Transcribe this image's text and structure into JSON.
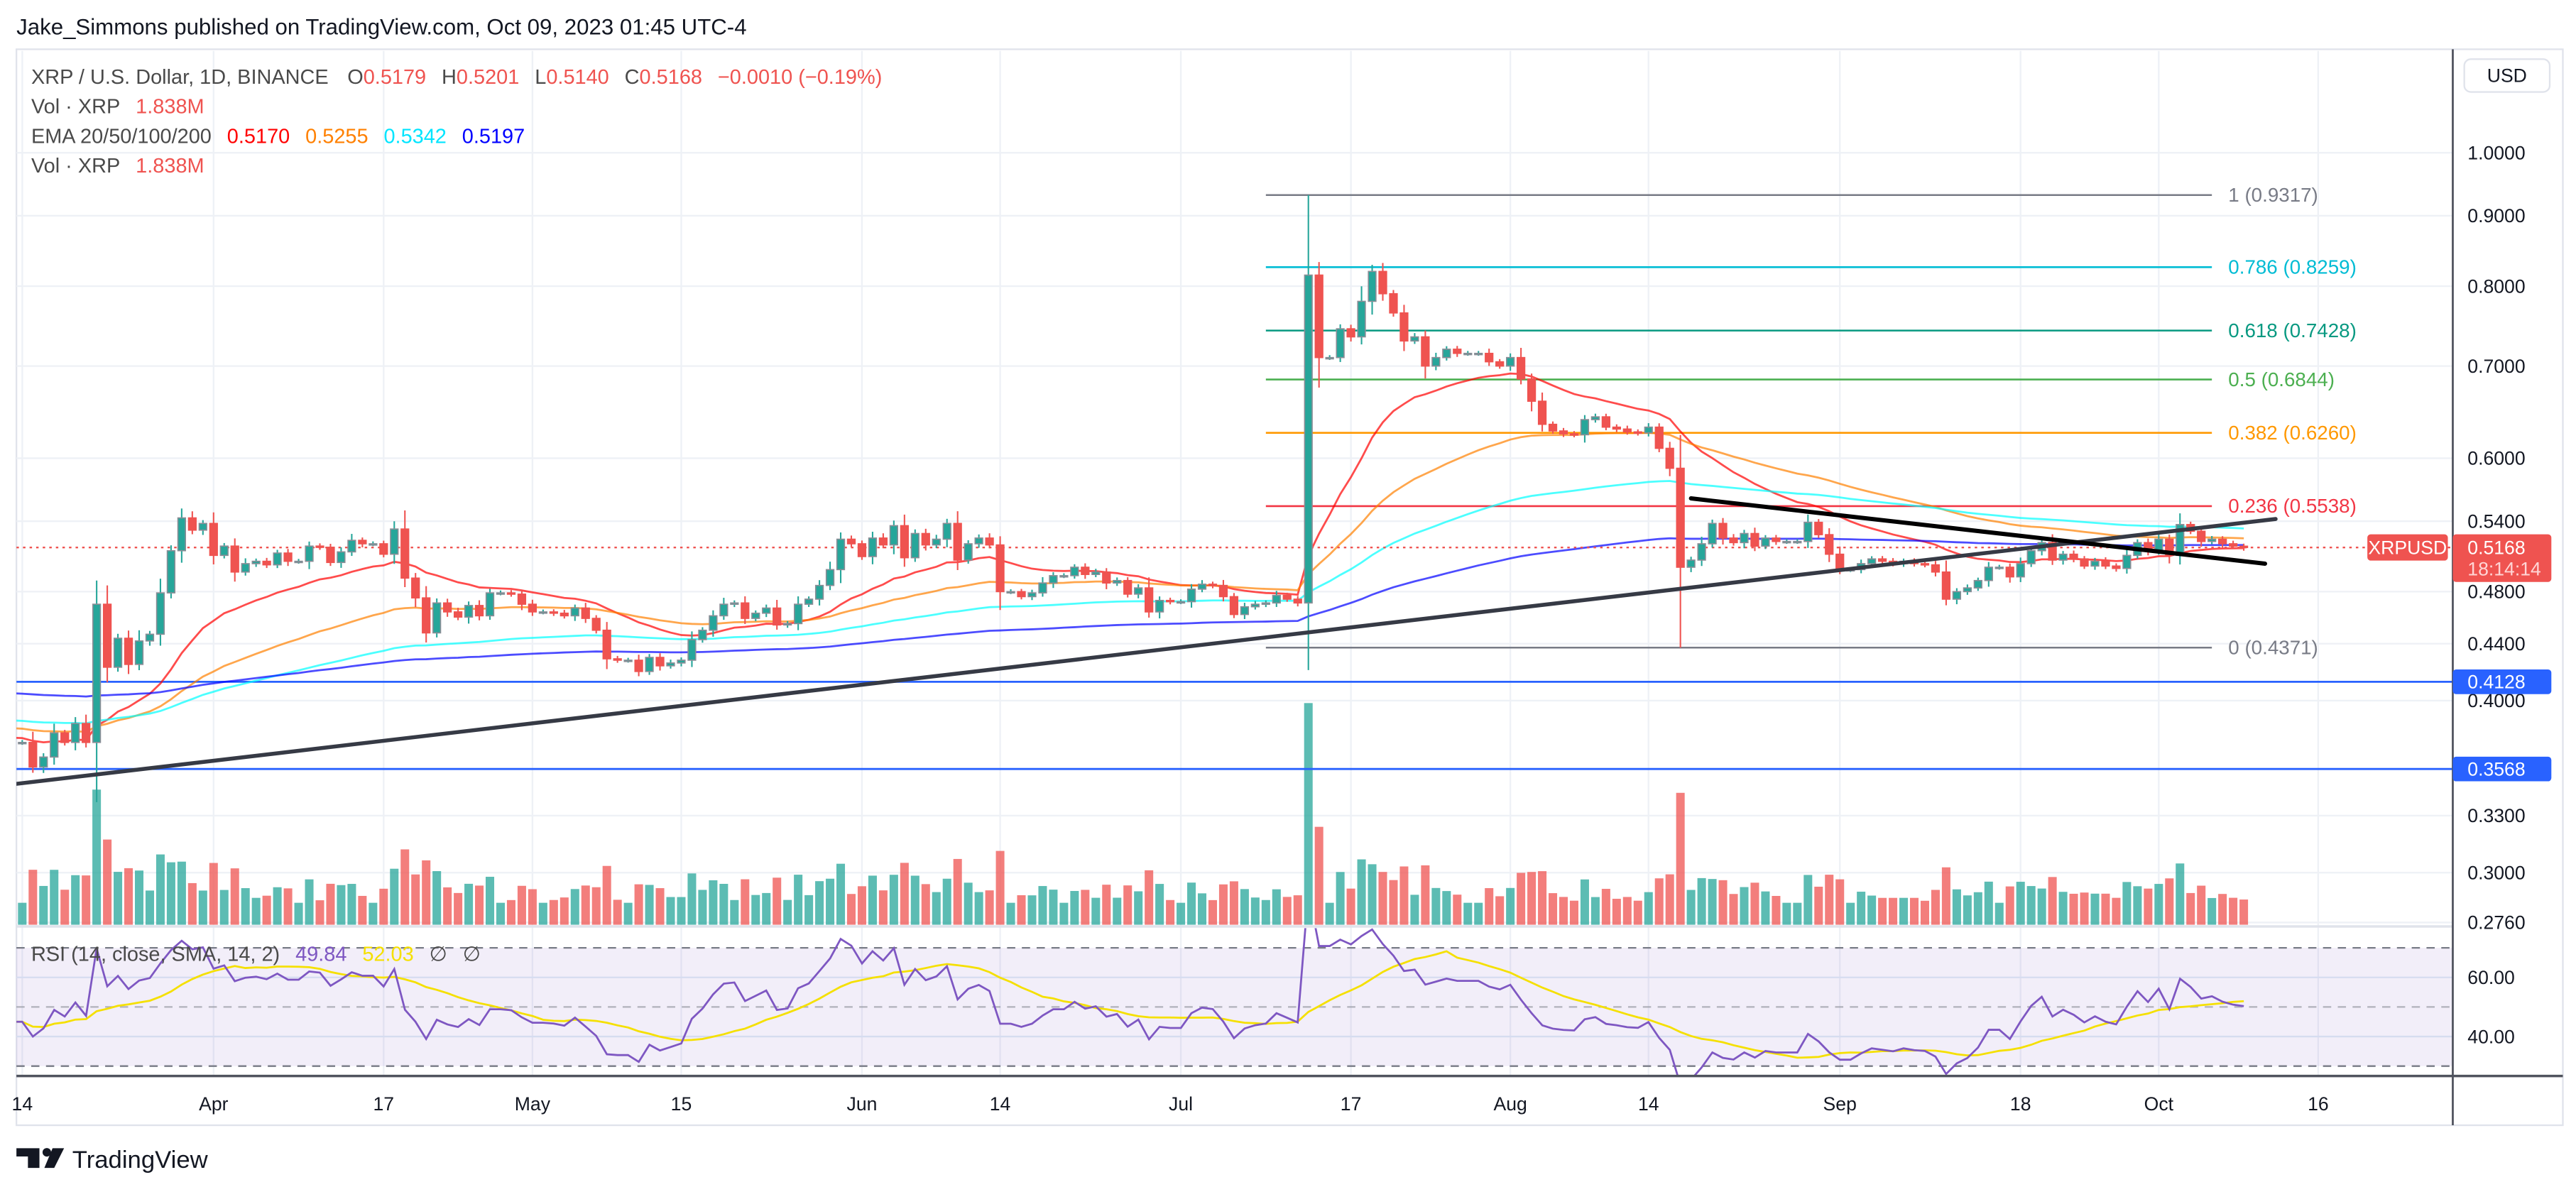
{
  "header": {
    "attribution": "Jake_Simmons published on TradingView.com, Oct 09, 2023 01:45 UTC-4"
  },
  "legend": {
    "symbol": "XRP / U.S. Dollar, 1D, BINANCE",
    "o_label": "O",
    "o": "0.5179",
    "h_label": "H",
    "h": "0.5201",
    "l_label": "L",
    "l": "0.5140",
    "c_label": "C",
    "c": "0.5168",
    "change": "−0.0010 (−0.19%)",
    "vol_label": "Vol · XRP",
    "vol": "1.838M",
    "ema_label": "EMA 20/50/100/200",
    "ema": [
      "0.5170",
      "0.5255",
      "0.5342",
      "0.5197"
    ],
    "vol2_label": "Vol · XRP",
    "vol2": "1.838M"
  },
  "price_axis": {
    "currency": "USD",
    "ticks": [
      "1.0000",
      "0.9000",
      "0.8000",
      "0.7000",
      "0.6000",
      "0.5400",
      "0.4800",
      "0.4400",
      "0.4000",
      "0.3300",
      "0.3000",
      "0.2760"
    ]
  },
  "tags": {
    "symbol": "XRPUSD",
    "price": "0.5168",
    "countdown": "18:14:14",
    "levels": [
      "0.4128",
      "0.3568"
    ]
  },
  "time_axis": [
    {
      "label": "14",
      "date": "2023-03-14"
    },
    {
      "label": "Apr",
      "date": "2023-04-01"
    },
    {
      "label": "17",
      "date": "2023-04-17"
    },
    {
      "label": "May",
      "date": "2023-05-01"
    },
    {
      "label": "15",
      "date": "2023-05-15"
    },
    {
      "label": "Jun",
      "date": "2023-06-01"
    },
    {
      "label": "14",
      "date": "2023-06-14"
    },
    {
      "label": "Jul",
      "date": "2023-07-01"
    },
    {
      "label": "17",
      "date": "2023-07-17"
    },
    {
      "label": "Aug",
      "date": "2023-08-01"
    },
    {
      "label": "14",
      "date": "2023-08-14"
    },
    {
      "label": "Sep",
      "date": "2023-09-01"
    },
    {
      "label": "18",
      "date": "2023-09-18"
    },
    {
      "label": "Oct",
      "date": "2023-10-01"
    },
    {
      "label": "16",
      "date": "2023-10-16"
    }
  ],
  "fib": {
    "start_date": "2023-07-09",
    "end_date": "2023-10-06",
    "levels": [
      {
        "label": "1 (0.9317)",
        "price": 0.9317,
        "color": "#787b86"
      },
      {
        "label": "0.786 (0.8259)",
        "price": 0.8259,
        "color": "#00bcd4"
      },
      {
        "label": "0.618 (0.7428)",
        "price": 0.7428,
        "color": "#089981"
      },
      {
        "label": "0.5 (0.6844)",
        "price": 0.6844,
        "color": "#4caf50"
      },
      {
        "label": "0.382 (0.6260)",
        "price": 0.626,
        "color": "#ff9800"
      },
      {
        "label": "0.236 (0.5538)",
        "price": 0.5538,
        "color": "#f23645"
      },
      {
        "label": "0 (0.4371)",
        "price": 0.4371,
        "color": "#787b86"
      }
    ]
  },
  "rsi": {
    "label": "RSI (14, close, SMA, 14, 2)",
    "value": "49.84",
    "sma": "52.03",
    "na1": "∅",
    "na2": "∅",
    "axis": [
      "60.00",
      "40.00"
    ]
  },
  "logo": {
    "text": "TradingView"
  },
  "colors": {
    "up": "#26a69a",
    "down": "#ef5350",
    "ema20": "#ff0000",
    "ema50": "#ff8000",
    "ema100": "#00ffff",
    "ema200": "#0000ff",
    "rsi": "#7e57c2",
    "rsi_sma": "#f5e000",
    "level": "#2962ff",
    "trendline": "#363a45"
  },
  "chart_data": {
    "type": "candlestick",
    "symbol": "XRPUSD",
    "interval": "1D",
    "y_scale": "log",
    "ylim": [
      0.27,
      1.05
    ],
    "xlim": [
      "2023-03-13",
      "2023-10-22"
    ],
    "grid": true,
    "start_date": "2023-03-13",
    "close": [
      0.373,
      0.373,
      0.358,
      0.364,
      0.379,
      0.373,
      0.385,
      0.373,
      0.47,
      0.423,
      0.444,
      0.425,
      0.442,
      0.447,
      0.479,
      0.514,
      0.543,
      0.532,
      0.538,
      0.51,
      0.518,
      0.496,
      0.503,
      0.505,
      0.502,
      0.512,
      0.505,
      0.505,
      0.518,
      0.517,
      0.504,
      0.513,
      0.523,
      0.52,
      0.52,
      0.511,
      0.533,
      0.491,
      0.475,
      0.448,
      0.471,
      0.464,
      0.46,
      0.469,
      0.461,
      0.479,
      0.479,
      0.478,
      0.47,
      0.464,
      0.464,
      0.463,
      0.461,
      0.467,
      0.459,
      0.45,
      0.429,
      0.428,
      0.428,
      0.42,
      0.43,
      0.424,
      0.426,
      0.428,
      0.443,
      0.45,
      0.461,
      0.47,
      0.471,
      0.459,
      0.463,
      0.467,
      0.454,
      0.455,
      0.47,
      0.474,
      0.485,
      0.498,
      0.524,
      0.52,
      0.509,
      0.525,
      0.519,
      0.536,
      0.508,
      0.529,
      0.519,
      0.524,
      0.538,
      0.506,
      0.52,
      0.525,
      0.519,
      0.48,
      0.48,
      0.476,
      0.479,
      0.487,
      0.493,
      0.493,
      0.5,
      0.494,
      0.496,
      0.487,
      0.489,
      0.478,
      0.483,
      0.464,
      0.473,
      0.472,
      0.472,
      0.482,
      0.486,
      0.485,
      0.476,
      0.462,
      0.468,
      0.47,
      0.471,
      0.477,
      0.474,
      0.471,
      0.815,
      0.71,
      0.71,
      0.745,
      0.735,
      0.78,
      0.82,
      0.79,
      0.765,
      0.73,
      0.735,
      0.7,
      0.71,
      0.72,
      0.715,
      0.715,
      0.715,
      0.705,
      0.7,
      0.71,
      0.685,
      0.66,
      0.635,
      0.628,
      0.625,
      0.624,
      0.64,
      0.643,
      0.632,
      0.63,
      0.627,
      0.626,
      0.632,
      0.61,
      0.59,
      0.5,
      0.506,
      0.52,
      0.538,
      0.525,
      0.521,
      0.529,
      0.518,
      0.525,
      0.522,
      0.522,
      0.522,
      0.539,
      0.528,
      0.511,
      0.498,
      0.498,
      0.503,
      0.507,
      0.505,
      0.503,
      0.505,
      0.503,
      0.502,
      0.496,
      0.474,
      0.48,
      0.483,
      0.489,
      0.5,
      0.5,
      0.492,
      0.503,
      0.514,
      0.521,
      0.506,
      0.511,
      0.507,
      0.501,
      0.505,
      0.501,
      0.499,
      0.51,
      0.521,
      0.514,
      0.524,
      0.51,
      0.537,
      0.531,
      0.522,
      0.524,
      0.52,
      0.5179,
      0.5168
    ],
    "extremes": [
      {
        "date": "2023-07-13",
        "high": 0.9317
      },
      {
        "date": "2023-08-17",
        "low": 0.4371
      },
      {
        "date": "2023-10-09",
        "open": 0.5179,
        "high": 0.5201,
        "low": 0.514
      }
    ],
    "ema_periods": [
      20,
      50,
      100,
      200
    ],
    "horizontal_levels": [
      0.4128,
      0.3568
    ],
    "last_price": 0.5168,
    "trendlines": [
      {
        "from": {
          "date": "2023-03-12",
          "price": 0.347
        },
        "to": {
          "date": "2023-10-12",
          "price": 0.542
        }
      },
      {
        "from": {
          "date": "2023-08-18",
          "price": 0.561
        },
        "to": {
          "date": "2023-10-11",
          "price": 0.503
        }
      }
    ],
    "rsi_levels": [
      70,
      50,
      30
    ]
  }
}
